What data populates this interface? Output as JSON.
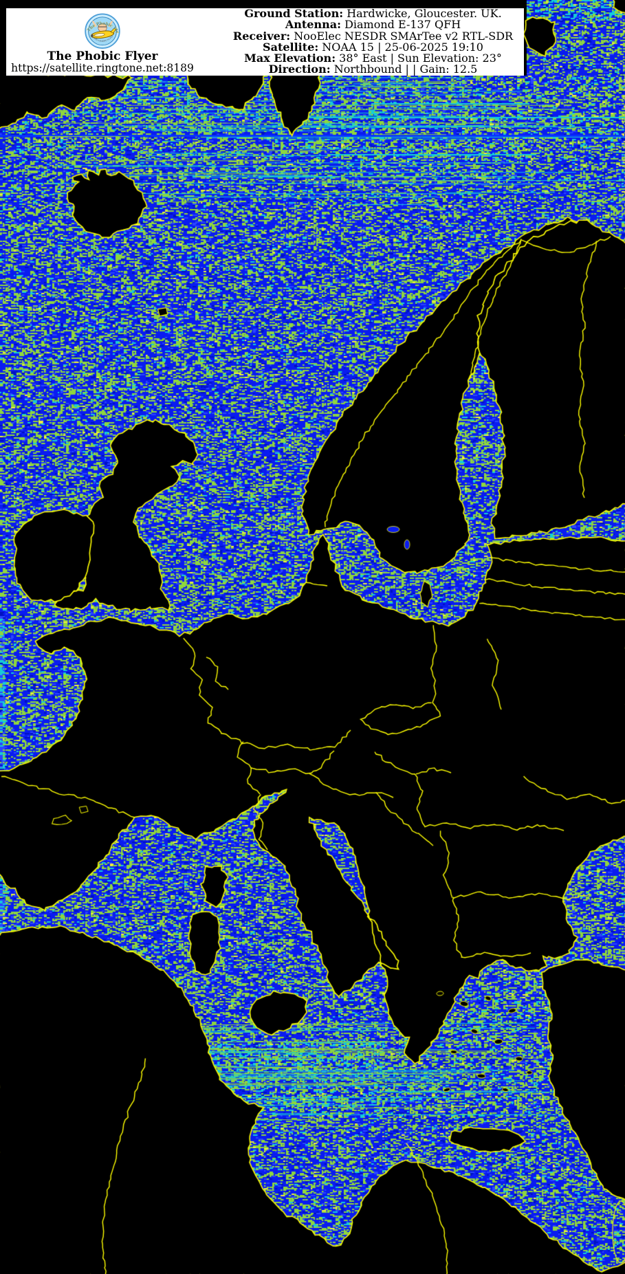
{
  "header": {
    "station_name": "The Phobic Flyer",
    "station_url": "https://satellite.ringtone.net:8189",
    "logo": {
      "title_arc": "The Phobic Flyer",
      "subtitle_arc": "WHO LEARNT TO FLY"
    },
    "info_lines": [
      {
        "label": "Ground Station:",
        "value": " Hardwicke, Gloucester. UK."
      },
      {
        "label": "Antenna:",
        "value": " Diamond E-137 QFH"
      },
      {
        "label": "Receiver:",
        "value": " NooElec NESDR SMArTee v2 RTL-SDR"
      },
      {
        "label": "Satellite:",
        "value": " NOAA 15 | 25-06-2025 19:10"
      },
      {
        "label": "Max Elevation:",
        "value": " 38° East | Sun Elevation: 23°"
      },
      {
        "label": "Direction:",
        "value": " Northbound | | Gain: 12.5"
      }
    ]
  },
  "map": {
    "description": "NOAA 15 APT false-colour satellite pass over Europe: black land, yellow coastlines and borders, noisy blue sea",
    "palette": {
      "sea_base": "#0a1cf0",
      "sea_dark": "#0012c0",
      "sea_light": "#2b46ff",
      "speckle_green": "#8ed63e",
      "speckle_cyan": "#17ccd6",
      "speckle_yellow": "#f0f03c",
      "coast_yellow": "#ffff00",
      "land_black": "#000000",
      "header_bg": "#ffffff",
      "header_text": "#000000"
    }
  }
}
